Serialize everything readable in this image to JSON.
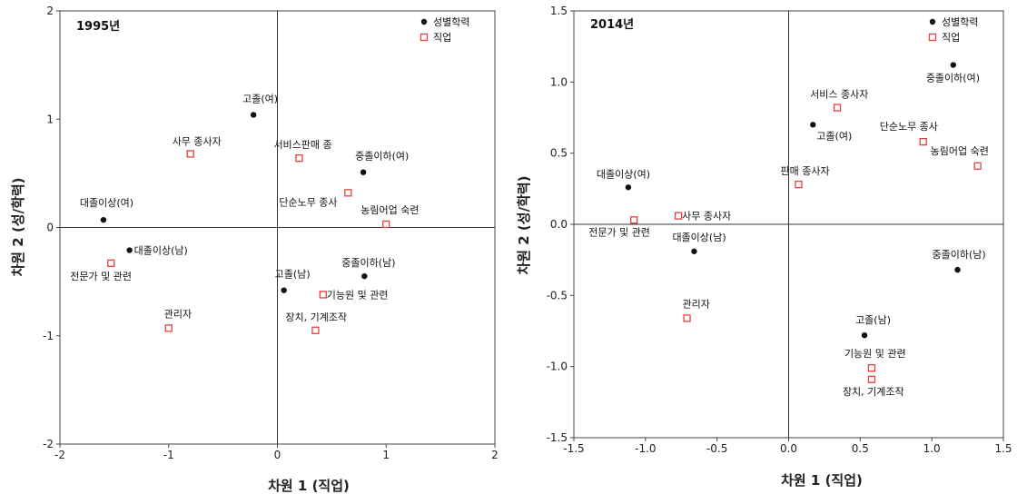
{
  "chart_data": [
    {
      "type": "scatter",
      "title": "1995년",
      "xlabel": "차원 1  (직업)",
      "ylabel": "차원 2  (성/학력)",
      "xlim": [
        -2,
        2
      ],
      "ylim": [
        -2,
        2
      ],
      "xticks": [
        "-2",
        "-1",
        "0",
        "1",
        "2"
      ],
      "yticks": [
        "-2",
        "-1",
        "0",
        "1",
        "2"
      ],
      "legend_position": "top-right",
      "series": [
        {
          "name": "성별학력",
          "marker": "filled-circle",
          "color": "#111111",
          "points": [
            {
              "label": "고졸(여)",
              "x": -0.22,
              "y": 1.04
            },
            {
              "label": "중졸이하(여)",
              "x": 0.79,
              "y": 0.51
            },
            {
              "label": "대졸이상(여)",
              "x": -1.6,
              "y": 0.07
            },
            {
              "label": "대졸이상(남)",
              "x": -1.36,
              "y": -0.21
            },
            {
              "label": "고졸(남)",
              "x": 0.06,
              "y": -0.58
            },
            {
              "label": "중졸이하(남)",
              "x": 0.8,
              "y": -0.45
            }
          ]
        },
        {
          "name": "직업",
          "marker": "open-square",
          "color": "#e8403a",
          "points": [
            {
              "label": "사무 종사자",
              "x": -0.8,
              "y": 0.68
            },
            {
              "label": "서비스판매 종",
              "x": 0.2,
              "y": 0.64
            },
            {
              "label": "단순노무 종사",
              "x": 0.65,
              "y": 0.32
            },
            {
              "label": "농림어업 숙련",
              "x": 1.0,
              "y": 0.03
            },
            {
              "label": "전문가 및 관련",
              "x": -1.53,
              "y": -0.33
            },
            {
              "label": "기능원 및 관련",
              "x": 0.42,
              "y": -0.62
            },
            {
              "label": "관리자",
              "x": -1.0,
              "y": -0.93
            },
            {
              "label": "장치, 기계조작",
              "x": 0.35,
              "y": -0.95
            }
          ]
        }
      ]
    },
    {
      "type": "scatter",
      "title": "2014년",
      "xlabel": "차원 1  (직업)",
      "ylabel": "차원 2  (성/학력)",
      "xlim": [
        -1.5,
        1.5
      ],
      "ylim": [
        -1.5,
        1.5
      ],
      "xticks": [
        "-1.5",
        "-1.0",
        "-0.5",
        "0.0",
        "0.5",
        "1.0",
        "1.5"
      ],
      "yticks": [
        "-1.5",
        "-1.0",
        "-0.5",
        "0.0",
        "0.5",
        "1.0",
        "1.5"
      ],
      "legend_position": "top-right",
      "series": [
        {
          "name": "성별학력",
          "marker": "filled-circle",
          "color": "#111111",
          "points": [
            {
              "label": "중졸이하(여)",
              "x": 1.15,
              "y": 1.12
            },
            {
              "label": "고졸(여)",
              "x": 0.17,
              "y": 0.7
            },
            {
              "label": "대졸이상(여)",
              "x": -1.12,
              "y": 0.26
            },
            {
              "label": "대졸이상(남)",
              "x": -0.66,
              "y": -0.19
            },
            {
              "label": "중졸이하(남)",
              "x": 1.18,
              "y": -0.32
            },
            {
              "label": "고졸(남)",
              "x": 0.53,
              "y": -0.78
            }
          ]
        },
        {
          "name": "직업",
          "marker": "open-square",
          "color": "#e8403a",
          "points": [
            {
              "label": "서비스 종사자",
              "x": 0.34,
              "y": 0.82
            },
            {
              "label": "단순노무 종사",
              "x": 0.94,
              "y": 0.58
            },
            {
              "label": "농림어업 숙련",
              "x": 1.32,
              "y": 0.41
            },
            {
              "label": "판매 종사자",
              "x": 0.07,
              "y": 0.28
            },
            {
              "label": "사무 종사자",
              "x": -0.77,
              "y": 0.06
            },
            {
              "label": "전문가 및 관련",
              "x": -1.08,
              "y": 0.03
            },
            {
              "label": "관리자",
              "x": -0.71,
              "y": -0.66
            },
            {
              "label": "기능원 및 관련",
              "x": 0.58,
              "y": -1.01
            },
            {
              "label": "장치, 기계조작",
              "x": 0.58,
              "y": -1.09
            }
          ]
        }
      ]
    }
  ]
}
